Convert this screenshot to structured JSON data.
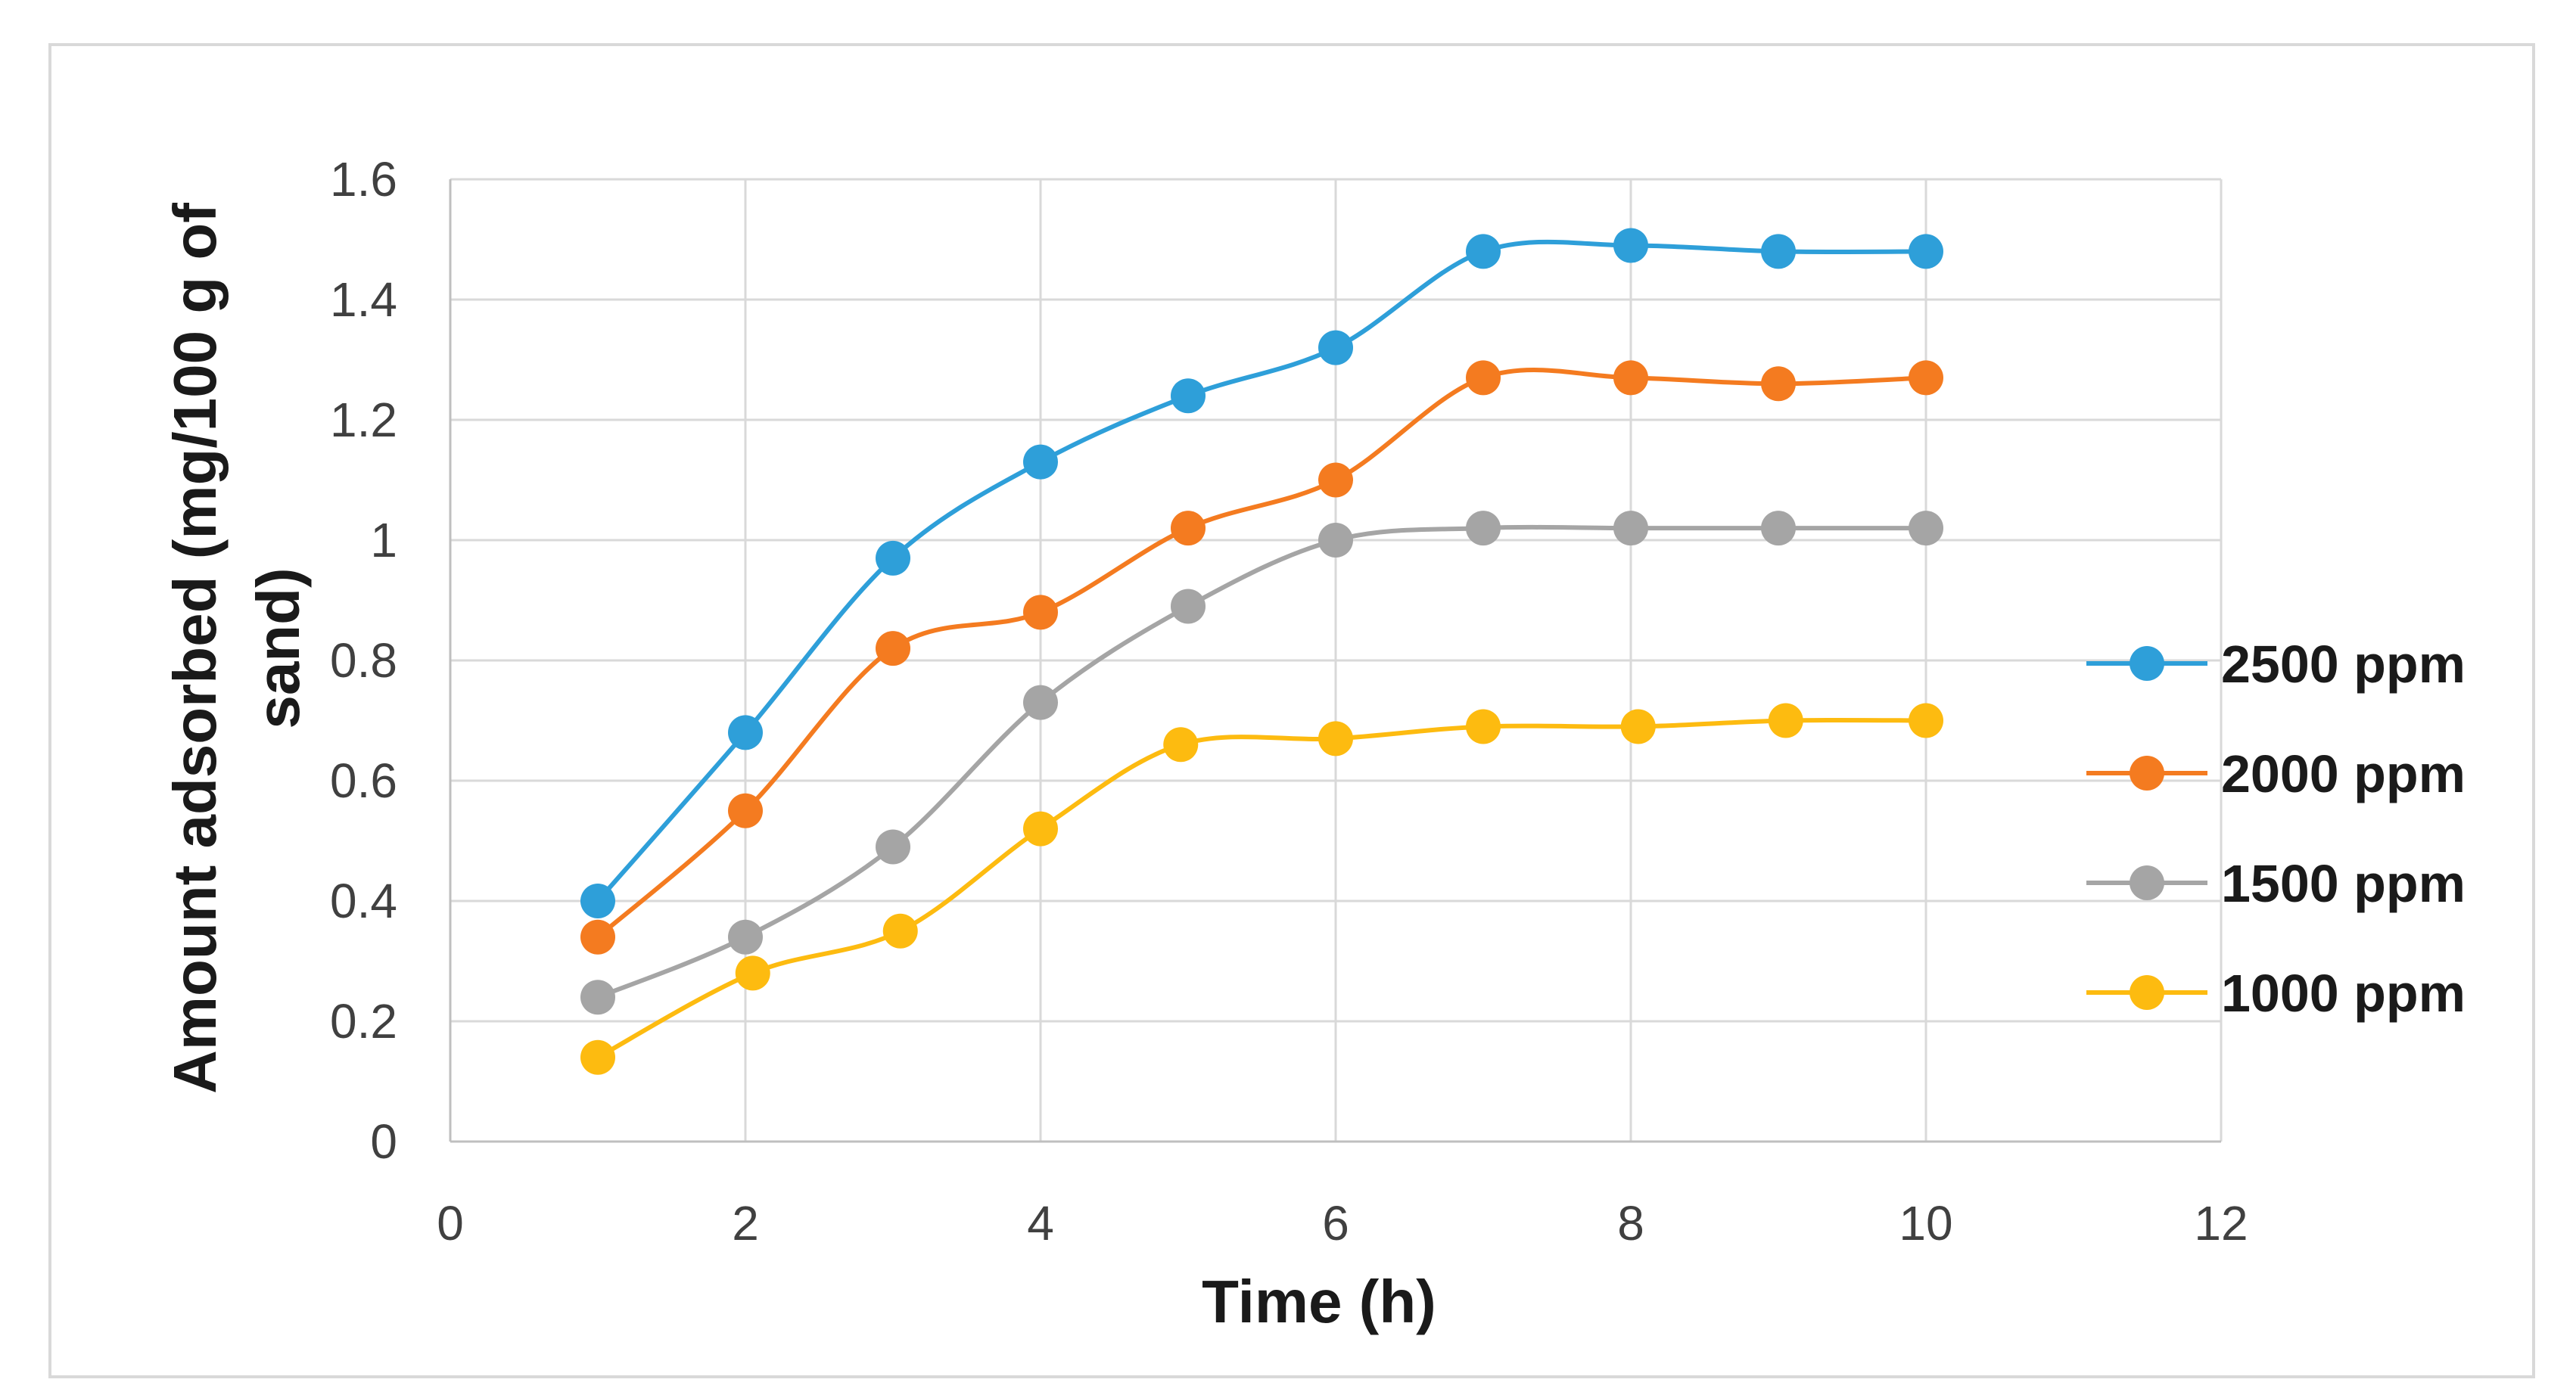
{
  "chart_data": {
    "type": "line",
    "xlabel": "Time (h)",
    "ylabel_lines": [
      "Amount adsorbed (mg/100 g of",
      "sand)"
    ],
    "xlim": [
      0,
      12
    ],
    "ylim": [
      0,
      1.6
    ],
    "x_ticks": [
      0,
      2,
      4,
      6,
      8,
      10,
      12
    ],
    "x_tick_labels": [
      "0",
      "2",
      "4",
      "6",
      "8",
      "10",
      "12"
    ],
    "y_ticks": [
      0,
      0.2,
      0.4,
      0.6,
      0.8,
      1.0,
      1.2,
      1.4,
      1.6
    ],
    "y_tick_labels": [
      "0",
      "0.2",
      "0.4",
      "0.6",
      "0.8",
      "1",
      "1.2",
      "1.4",
      "1.6"
    ],
    "grid": true,
    "legend_position": "right",
    "smooth_lines": true,
    "series": [
      {
        "name": "2500 ppm",
        "color": "#2e9fd9",
        "x": [
          1,
          2,
          3,
          4,
          5,
          6,
          7,
          8,
          9,
          10
        ],
        "y": [
          0.4,
          0.68,
          0.97,
          1.13,
          1.24,
          1.32,
          1.48,
          1.49,
          1.48,
          1.48
        ]
      },
      {
        "name": "2000 ppm",
        "color": "#f47b20",
        "x": [
          1,
          2,
          3,
          4,
          5,
          6,
          7,
          8,
          9,
          10
        ],
        "y": [
          0.34,
          0.55,
          0.82,
          0.88,
          1.02,
          1.1,
          1.27,
          1.27,
          1.26,
          1.27
        ]
      },
      {
        "name": "1500 ppm",
        "color": "#a5a5a5",
        "x": [
          1,
          2,
          3,
          4,
          5,
          6,
          7,
          8,
          9,
          10
        ],
        "y": [
          0.24,
          0.34,
          0.49,
          0.73,
          0.89,
          1.0,
          1.02,
          1.02,
          1.02,
          1.02
        ]
      },
      {
        "name": "1000 ppm",
        "color": "#fdbb10",
        "x": [
          1,
          2.05,
          3.05,
          4.0,
          4.95,
          6.0,
          7.0,
          8.05,
          9.05,
          10.0
        ],
        "y": [
          0.14,
          0.28,
          0.35,
          0.52,
          0.66,
          0.67,
          0.69,
          0.69,
          0.7,
          0.7
        ]
      }
    ]
  }
}
